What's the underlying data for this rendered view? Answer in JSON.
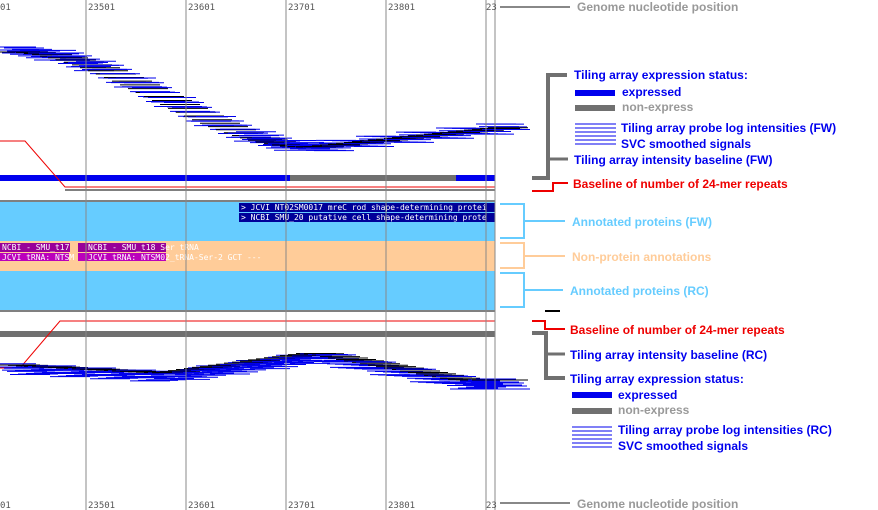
{
  "axis": {
    "ticks": [
      "01",
      "23501",
      "23601",
      "23701",
      "23801",
      "23"
    ],
    "label": "Genome nucleotide position"
  },
  "annotations": {
    "fw_proteins": [
      "> JCVI NT02SM0017 mreC rod shape-determining protei",
      "> NCBI SMU_20 putative cell shape-determining prote"
    ],
    "non_protein": {
      "ncbi_1": "NCBI - SMU_t17",
      "ncbi_2": "NCBI - SMU_t18 Ser tRNA",
      "jcvi_1": "JCVI tRNA: NTSM",
      "jcvi_2": "JCVI tRNA: NTSM02_tRNA-Ser-2 GCT ---"
    }
  },
  "legend": {
    "fw": {
      "status_title": "Tiling array expression status:",
      "expressed": "expressed",
      "non_express": "non-express",
      "probe": "Tiling array probe log intensities (FW)",
      "svc": "SVC smoothed signals",
      "baseline": "Tiling array intensity baseline (FW)",
      "repeats": "Baseline of number of 24-mer repeats"
    },
    "annotated_fw": "Annotated proteins (FW)",
    "non_protein": "Non-protein annotations",
    "annotated_rc": "Annotated proteins (RC)",
    "rc": {
      "repeats": "Baseline of number of 24-mer repeats",
      "baseline": "Tiling array intensity baseline (RC)",
      "status_title": "Tiling array expression status:",
      "expressed": "expressed",
      "non_express": "non-express",
      "probe": "Tiling array probe log intensities (RC)",
      "svc": "SVC smoothed signals"
    }
  },
  "colors": {
    "blue": "#0000ee",
    "gray": "#707070",
    "red": "#ee0000",
    "lightblue": "#66ccff",
    "peach": "#ffcc99",
    "purple": "#990099",
    "magenta": "#bb00bb",
    "navy": "#000099"
  }
}
